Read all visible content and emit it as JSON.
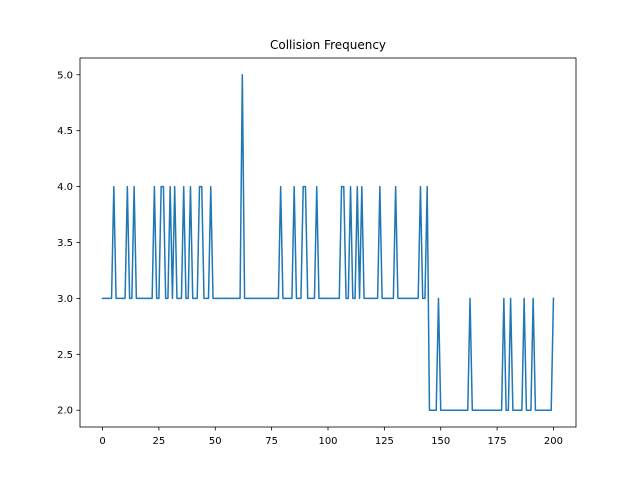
{
  "chart_data": {
    "type": "line",
    "title": "Collision Frequency",
    "xlabel": "",
    "ylabel": "",
    "xlim": [
      -10,
      210
    ],
    "ylim": [
      1.85,
      5.15
    ],
    "xticks": [
      0,
      25,
      50,
      75,
      100,
      125,
      150,
      175,
      200
    ],
    "xtick_labels": [
      "0",
      "25",
      "50",
      "75",
      "100",
      "125",
      "150",
      "175",
      "200"
    ],
    "yticks": [
      2.0,
      2.5,
      3.0,
      3.5,
      4.0,
      4.5,
      5.0
    ],
    "ytick_labels": [
      "2.0",
      "2.5",
      "3.0",
      "3.5",
      "4.0",
      "4.5",
      "5.0"
    ],
    "grid": false,
    "legend": "none",
    "series": [
      {
        "color": "#1f77b4",
        "x": [
          0,
          1,
          2,
          3,
          4,
          5,
          6,
          7,
          8,
          9,
          10,
          11,
          12,
          13,
          14,
          15,
          16,
          17,
          18,
          19,
          20,
          21,
          22,
          23,
          24,
          25,
          26,
          27,
          28,
          29,
          30,
          31,
          32,
          33,
          34,
          35,
          36,
          37,
          38,
          39,
          40,
          41,
          42,
          43,
          44,
          45,
          46,
          47,
          48,
          49,
          50,
          51,
          52,
          53,
          54,
          55,
          56,
          57,
          58,
          59,
          60,
          61,
          62,
          63,
          64,
          65,
          66,
          67,
          68,
          69,
          70,
          71,
          72,
          73,
          74,
          75,
          76,
          77,
          78,
          79,
          80,
          81,
          82,
          83,
          84,
          85,
          86,
          87,
          88,
          89,
          90,
          91,
          92,
          93,
          94,
          95,
          96,
          97,
          98,
          99,
          100,
          101,
          102,
          103,
          104,
          105,
          106,
          107,
          108,
          109,
          110,
          111,
          112,
          113,
          114,
          115,
          116,
          117,
          118,
          119,
          120,
          121,
          122,
          123,
          124,
          125,
          126,
          127,
          128,
          129,
          130,
          131,
          132,
          133,
          134,
          135,
          136,
          137,
          138,
          139,
          140,
          141,
          142,
          143,
          144,
          145,
          146,
          147,
          148,
          149,
          150,
          151,
          152,
          153,
          154,
          155,
          156,
          157,
          158,
          159,
          160,
          161,
          162,
          163,
          164,
          165,
          166,
          167,
          168,
          169,
          170,
          171,
          172,
          173,
          174,
          175,
          176,
          177,
          178,
          179,
          180,
          181,
          182,
          183,
          184,
          185,
          186,
          187,
          188,
          189,
          190,
          191,
          192,
          193,
          194,
          195,
          196,
          197,
          198,
          199,
          200
        ],
        "y": [
          3,
          3,
          3,
          3,
          3,
          4,
          3,
          3,
          3,
          3,
          3,
          4,
          3,
          3,
          4,
          3,
          3,
          3,
          3,
          3,
          3,
          3,
          3,
          4,
          3,
          3,
          4,
          4,
          3,
          3,
          4,
          3,
          4,
          3,
          3,
          3,
          4,
          3,
          3,
          4,
          3,
          3,
          3,
          4,
          4,
          3,
          3,
          3,
          4,
          3,
          3,
          3,
          3,
          3,
          3,
          3,
          3,
          3,
          3,
          3,
          3,
          3,
          5,
          3,
          3,
          3,
          3,
          3,
          3,
          3,
          3,
          3,
          3,
          3,
          3,
          3,
          3,
          3,
          3,
          4,
          3,
          3,
          3,
          3,
          3,
          4,
          3,
          3,
          3,
          4,
          4,
          3,
          3,
          3,
          3,
          4,
          3,
          3,
          3,
          3,
          3,
          3,
          3,
          3,
          3,
          3,
          4,
          4,
          3,
          3,
          4,
          3,
          3,
          4,
          3,
          4,
          3,
          3,
          3,
          3,
          3,
          3,
          3,
          4,
          3,
          3,
          3,
          3,
          3,
          3,
          4,
          3,
          3,
          3,
          3,
          3,
          3,
          3,
          3,
          3,
          3,
          4,
          3,
          3,
          4,
          2,
          2,
          2,
          2,
          3,
          2,
          2,
          2,
          2,
          2,
          2,
          2,
          2,
          2,
          2,
          2,
          2,
          2,
          3,
          2,
          2,
          2,
          2,
          2,
          2,
          2,
          2,
          2,
          2,
          2,
          2,
          2,
          2,
          3,
          2,
          2,
          3,
          2,
          2,
          2,
          2,
          2,
          3,
          2,
          2,
          2,
          3,
          2,
          2,
          2,
          2,
          2,
          2,
          2,
          2,
          3
        ]
      }
    ]
  }
}
